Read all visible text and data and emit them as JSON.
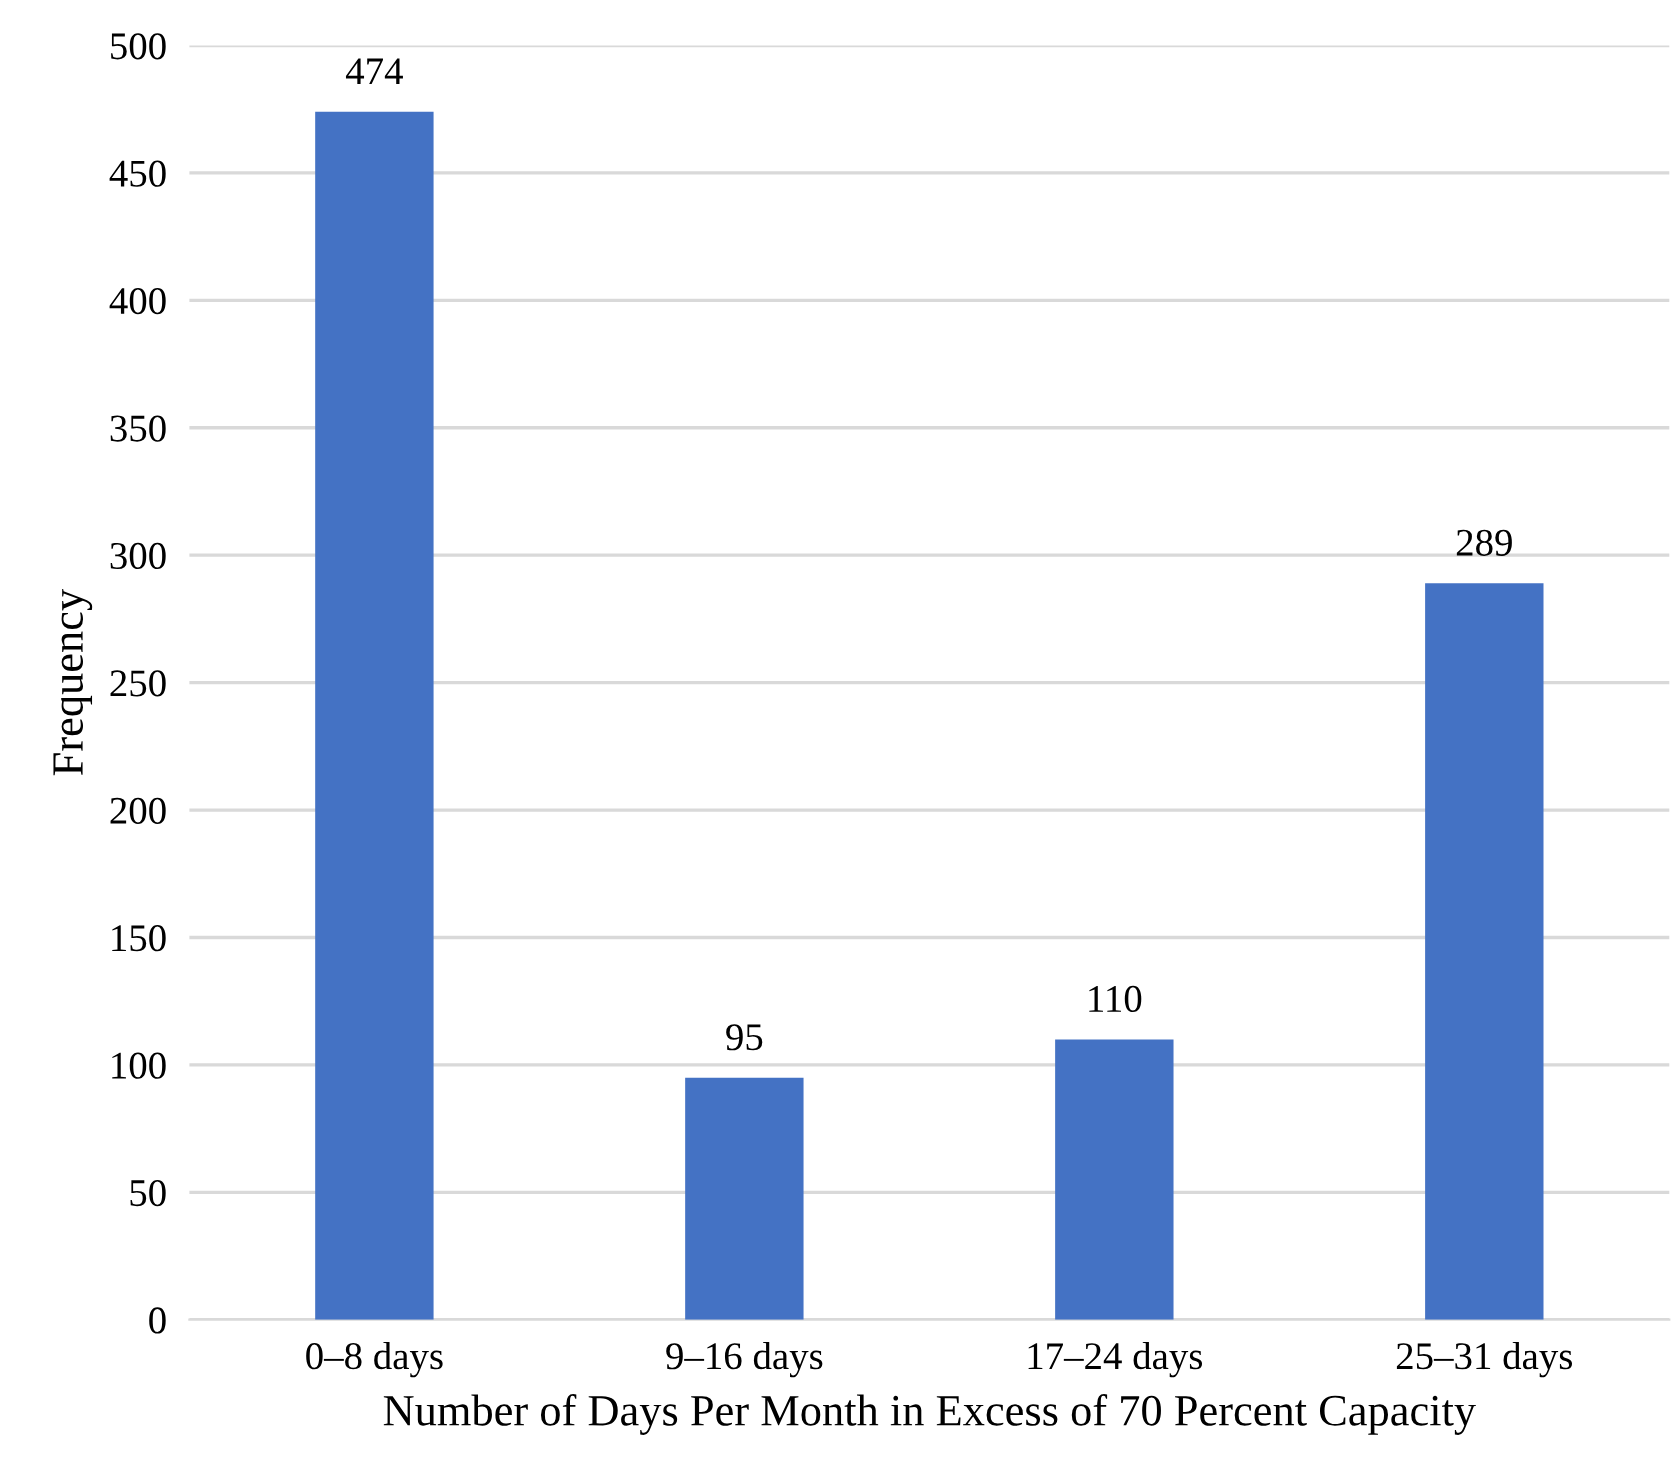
{
  "chart_data": {
    "type": "bar",
    "xlabel": "Number of Days Per Month in Excess of 70 Percent Capacity",
    "ylabel": "Frequency",
    "categories": [
      "0–8 days",
      "9–16 days",
      "17–24 days",
      "25–31 days"
    ],
    "values": [
      474,
      95,
      110,
      289
    ],
    "color": "#4472c4",
    "ylim": [
      0,
      500
    ],
    "yticks": [
      0,
      50,
      100,
      150,
      200,
      250,
      300,
      350,
      400,
      450,
      500
    ],
    "grid": "y",
    "data_labels": true
  }
}
